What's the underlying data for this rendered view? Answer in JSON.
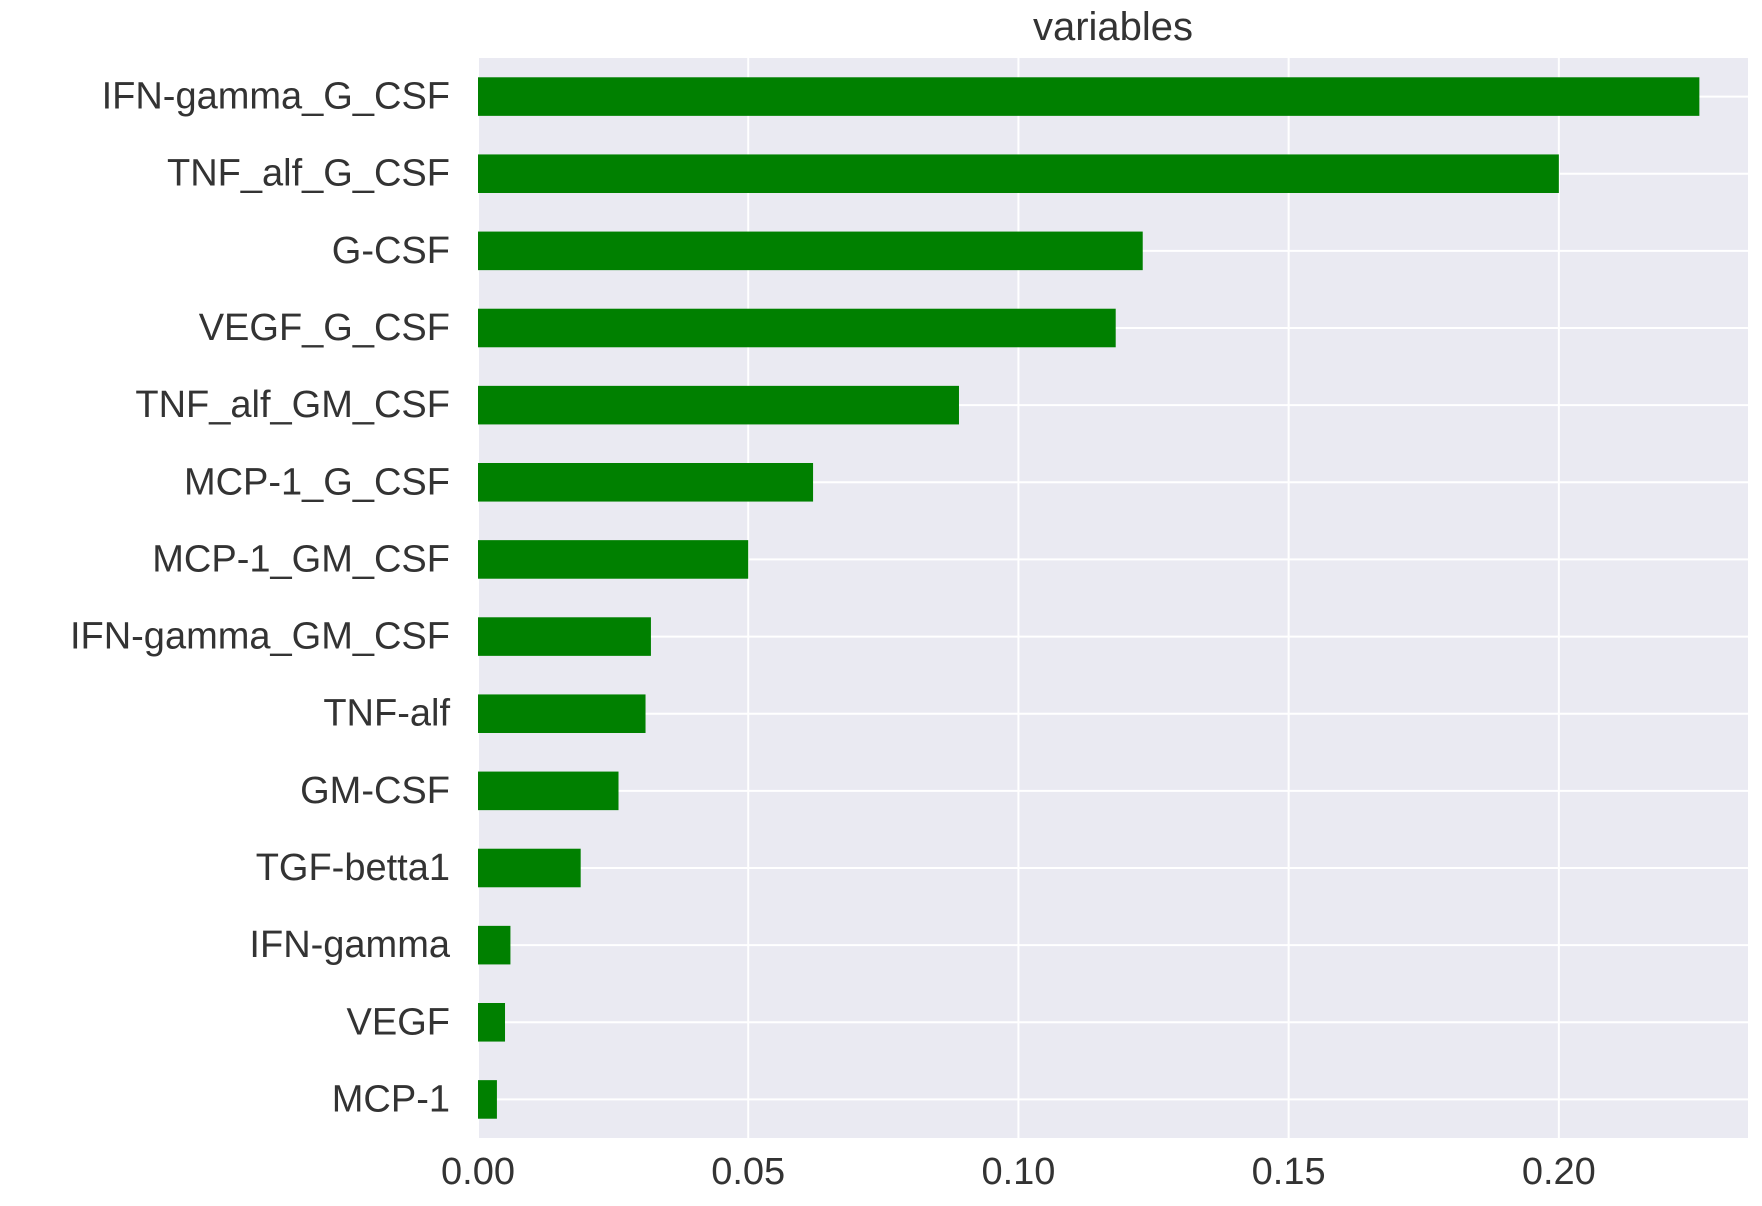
{
  "chart_data": {
    "type": "bar",
    "orientation": "horizontal",
    "title": "variables",
    "xlabel": "",
    "ylabel": "",
    "categories": [
      "IFN-gamma_G_CSF",
      "TNF_alf_G_CSF",
      "G-CSF",
      "VEGF_G_CSF",
      "TNF_alf_GM_CSF",
      "MCP-1_G_CSF",
      "MCP-1_GM_CSF",
      "IFN-gamma_GM_CSF",
      "TNF-alf",
      "GM-CSF",
      "TGF-betta1",
      "IFN-gamma",
      "VEGF",
      "MCP-1"
    ],
    "values": [
      0.226,
      0.2,
      0.123,
      0.118,
      0.089,
      0.062,
      0.05,
      0.032,
      0.031,
      0.026,
      0.019,
      0.006,
      0.005,
      0.0035
    ],
    "xlim": [
      0,
      0.235
    ],
    "xticks": [
      0.0,
      0.05,
      0.1,
      0.15,
      0.2
    ],
    "xtick_labels": [
      "0.00",
      "0.05",
      "0.10",
      "0.15",
      "0.20"
    ],
    "grid": true,
    "bar_color": "#008000",
    "background_color": "#eaeaf2",
    "grid_color": "#ffffff",
    "legend": "none"
  }
}
